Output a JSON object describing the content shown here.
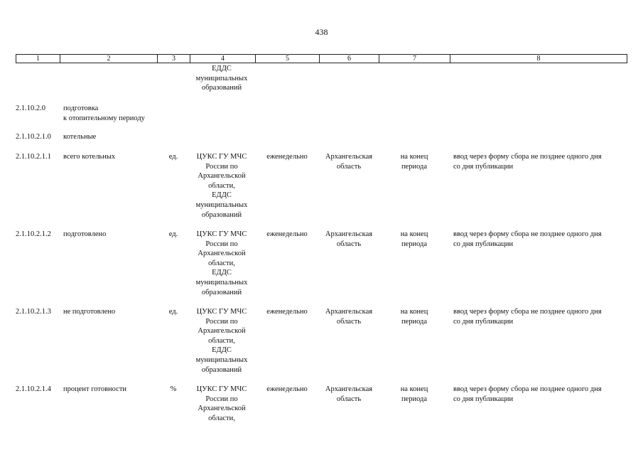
{
  "page_number": "438",
  "header": [
    "1",
    "2",
    "3",
    "4",
    "5",
    "6",
    "7",
    "8"
  ],
  "continuation": {
    "col4": "ЕДДС\nмуниципальных\nобразований"
  },
  "rows": [
    {
      "code": "2.1.10.2.0",
      "name": "подготовка\nк отопительному периоду",
      "unit": "",
      "source": "",
      "frequency": "",
      "territory": "",
      "period": "",
      "method": ""
    },
    {
      "code": "2.1.10.2.1.0",
      "name": "котельные",
      "unit": "",
      "source": "",
      "frequency": "",
      "territory": "",
      "period": "",
      "method": ""
    },
    {
      "code": "2.1.10.2.1.1",
      "name": "всего котельных",
      "unit": "ед.",
      "source": "ЦУКС ГУ МЧС\nРоссии по\nАрхангельской\nобласти,\nЕДДС\nмуниципальных\nобразований",
      "frequency": "еженедельно",
      "territory": "Архангельская\nобласть",
      "period": "на конец\nпериода",
      "method": "ввод через форму сбора не позднее одного дня\nсо дня публикации"
    },
    {
      "code": "2.1.10.2.1.2",
      "name": "подготовлено",
      "unit": "ед.",
      "source": "ЦУКС ГУ МЧС\nРоссии по\nАрхангельской\nобласти,\nЕДДС\nмуниципальных\nобразований",
      "frequency": "еженедельно",
      "territory": "Архангельская\nобласть",
      "period": "на конец\nпериода",
      "method": "ввод через форму сбора не позднее одного дня\nсо дня публикации"
    },
    {
      "code": "2.1.10.2.1.3",
      "name": "не подготовлено",
      "unit": "ед.",
      "source": "ЦУКС ГУ МЧС\nРоссии по\nАрхангельской\nобласти,\nЕДДС\nмуниципальных\nобразований",
      "frequency": "еженедельно",
      "territory": "Архангельская\nобласть",
      "period": "на конец\nпериода",
      "method": "ввод через форму сбора не позднее одного дня\nсо дня публикации"
    },
    {
      "code": "2.1.10.2.1.4",
      "name": "процент готовности",
      "unit": "%",
      "source": "ЦУКС ГУ МЧС\nРоссии по\nАрхангельской\nобласти,",
      "frequency": "еженедельно",
      "territory": "Архангельская\nобласть",
      "period": "на конец\nпериода",
      "method": "ввод через форму сбора не позднее одного дня\nсо дня публикации"
    }
  ]
}
